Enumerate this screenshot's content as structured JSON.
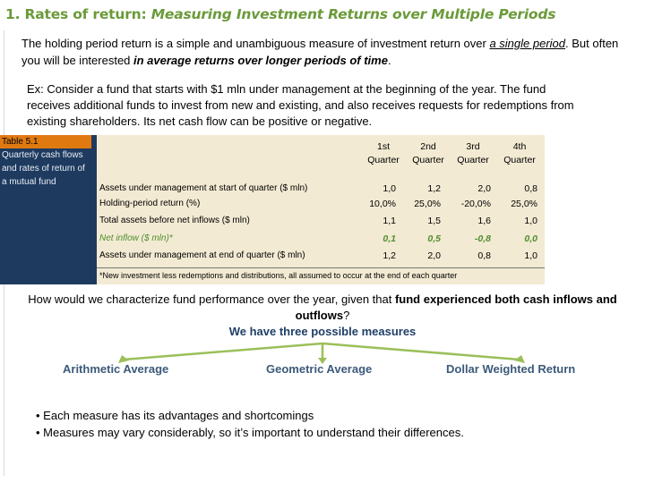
{
  "title": {
    "number": "1. ",
    "plain": "Rates of return: ",
    "italic": "Measuring Investment Returns over Multiple Periods"
  },
  "intro": {
    "part1": "The holding period return is a simple and unambiguous measure of investment return over ",
    "underlined": "a single period",
    "part2": ". But often you will be interested ",
    "emphasis": "in average returns over longer periods of time",
    "part3": "."
  },
  "example": "Ex: Consider a fund that starts with $1 mln under management at the beginning of the year. The fund receives additional funds to invest from new and existing, and also receives requests for redemptions from existing shareholders. Its net cash flow can be positive or negative.",
  "table": {
    "label": "Table 5.1",
    "caption": "Quarterly cash flows and rates of return of a mutual fund",
    "headers": [
      {
        "line1": "1st",
        "line2": "Quarter"
      },
      {
        "line1": "2nd",
        "line2": "Quarter"
      },
      {
        "line1": "3rd",
        "line2": "Quarter"
      },
      {
        "line1": "4th",
        "line2": "Quarter"
      }
    ],
    "rows": [
      {
        "label": "Assets under management at start of quarter ($ mln)",
        "values": [
          "1,0",
          "1,2",
          "2,0",
          "0,8"
        ]
      },
      {
        "label": "Holding-period return (%)",
        "values": [
          "10,0%",
          "25,0%",
          "-20,0%",
          "25,0%"
        ]
      },
      {
        "label": "Total assets before net inflows ($ mln)",
        "values": [
          "1,1",
          "1,5",
          "1,6",
          "1,0"
        ]
      },
      {
        "label": "Net inflow ($ mln)*",
        "values": [
          "0,1",
          "0,5",
          "-0,8",
          "0,0"
        ]
      },
      {
        "label": "Assets under management at end of quarter ($ mln)",
        "values": [
          "1,2",
          "2,0",
          "0,8",
          "1,0"
        ]
      }
    ],
    "footnote": "*New investment less redemptions and distributions, all assumed to occur at the end of each quarter"
  },
  "question": {
    "part1": "How would we characterize fund performance over the year, given that ",
    "bold": "fund experienced both cash inflows and outflows",
    "part2": "?",
    "sub": "We have three possible measures"
  },
  "measures": [
    "Arithmetic Average",
    "Geometric Average",
    "Dollar Weighted Return"
  ],
  "bullets": [
    "Each measure has its advantages and shortcomings",
    "Measures may vary considerably, so it’s important to understand their differences."
  ],
  "colors": {
    "title": "#6b9a3a",
    "table_side": "#1e3a5f",
    "table_label": "#e07a10",
    "table_body": "#f3ead3",
    "branch": "#9bbf5a",
    "measure": "#3c5a7a"
  }
}
